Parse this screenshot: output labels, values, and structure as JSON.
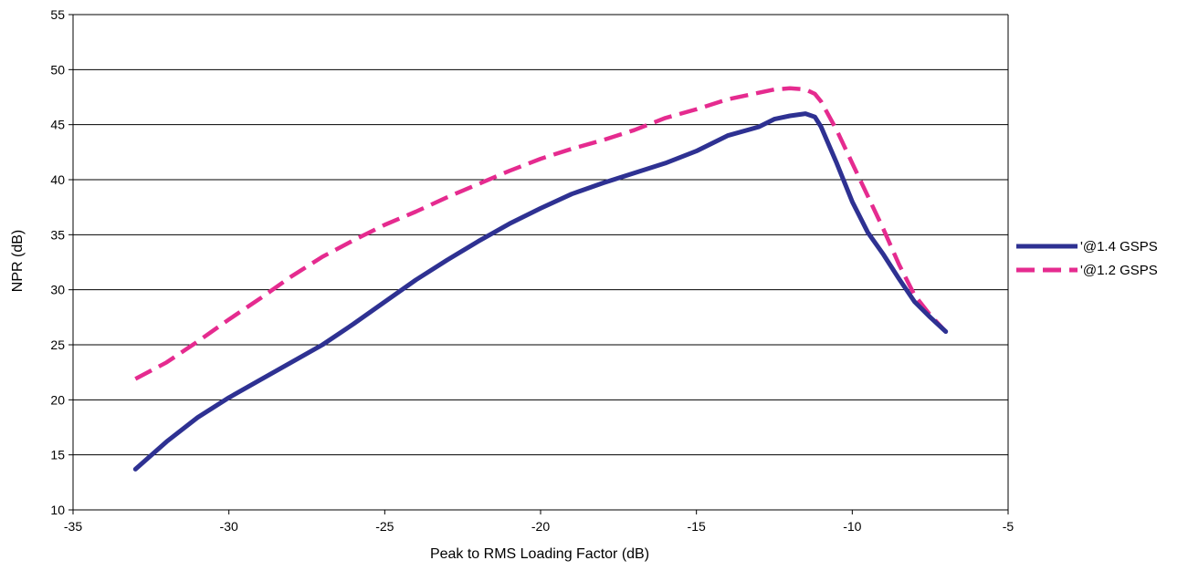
{
  "chart_data": {
    "type": "line",
    "title": "",
    "xlabel": "Peak to RMS Loading Factor (dB)",
    "ylabel": "NPR (dB)",
    "xlim": [
      -35,
      -5
    ],
    "ylim": [
      10,
      55
    ],
    "xticks": [
      -35,
      -30,
      -25,
      -20,
      -15,
      -10,
      -5
    ],
    "yticks": [
      10,
      15,
      20,
      25,
      30,
      35,
      40,
      45,
      50,
      55
    ],
    "grid": "horizontal",
    "legend_position": "right",
    "series": [
      {
        "name": "'@1.4 GSPS",
        "color": "#2e3192",
        "style": "solid",
        "x": [
          -33,
          -32,
          -31,
          -30,
          -29,
          -28,
          -27,
          -26,
          -25,
          -24,
          -23,
          -22,
          -21,
          -20,
          -19,
          -18,
          -17,
          -16,
          -15,
          -14,
          -13,
          -12.5,
          -12,
          -11.5,
          -11.2,
          -11,
          -10.5,
          -10,
          -9.5,
          -9,
          -8.5,
          -8,
          -7.5,
          -7
        ],
        "y": [
          13.7,
          16.2,
          18.4,
          20.2,
          21.8,
          23.4,
          25,
          26.9,
          28.9,
          30.9,
          32.7,
          34.4,
          36,
          37.4,
          38.7,
          39.7,
          40.6,
          41.5,
          42.6,
          44,
          44.8,
          45.5,
          45.8,
          46,
          45.7,
          44.8,
          41.5,
          38,
          35.2,
          33.2,
          31,
          28.9,
          27.5,
          26.2
        ]
      },
      {
        "name": "'@1.2 GSPS",
        "color": "#e52b8f",
        "style": "dashed",
        "x": [
          -33,
          -32,
          -31,
          -30,
          -29,
          -28,
          -27,
          -26,
          -25,
          -24,
          -23,
          -22,
          -21,
          -20,
          -19,
          -18,
          -17,
          -16,
          -15,
          -14,
          -13,
          -12.5,
          -12,
          -11.5,
          -11.2,
          -11,
          -10.5,
          -10,
          -9.5,
          -9,
          -8.5,
          -8,
          -7.5,
          -7
        ],
        "y": [
          21.9,
          23.4,
          25.3,
          27.3,
          29.2,
          31.2,
          33,
          34.5,
          35.9,
          37.1,
          38.4,
          39.6,
          40.8,
          41.9,
          42.8,
          43.6,
          44.5,
          45.6,
          46.4,
          47.3,
          47.9,
          48.2,
          48.3,
          48.2,
          47.8,
          47.1,
          44.5,
          41.5,
          38.5,
          35.5,
          32.3,
          29.5,
          27.7,
          26.2
        ]
      }
    ]
  }
}
